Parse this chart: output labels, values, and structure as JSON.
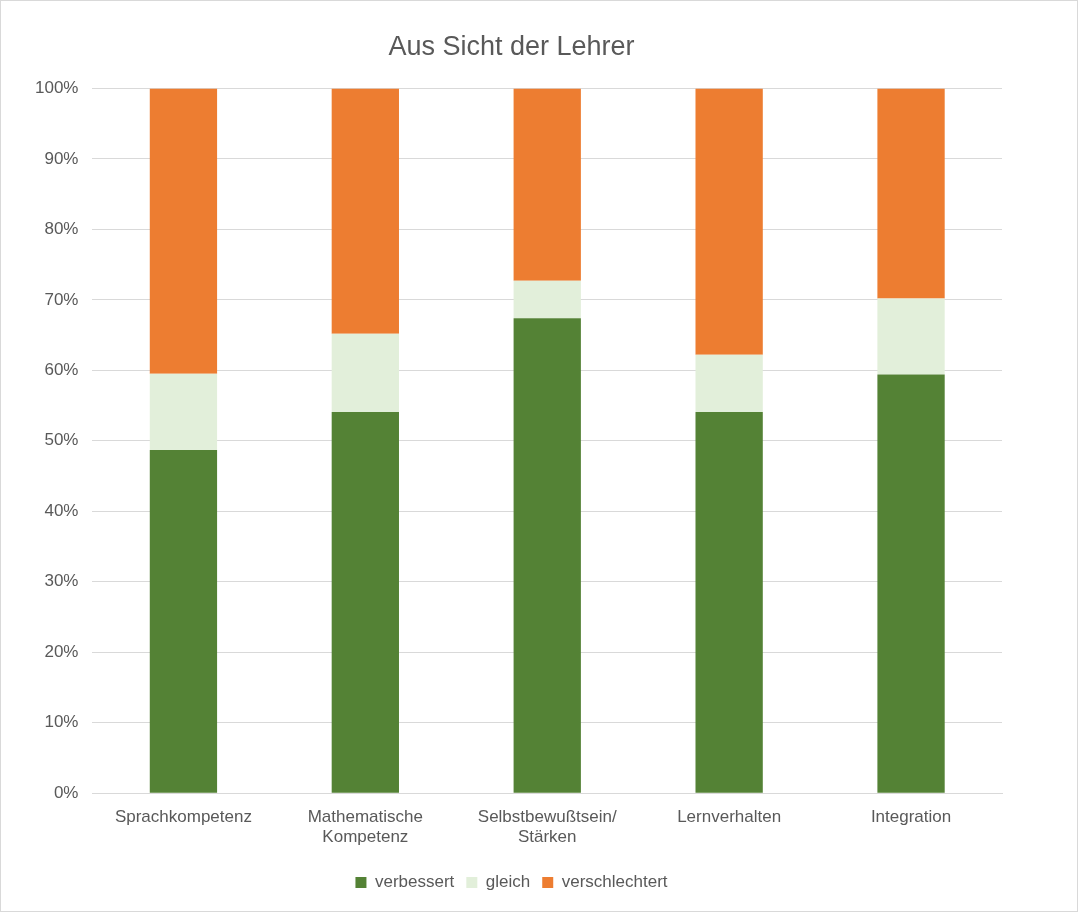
{
  "chart_data": {
    "type": "bar",
    "title": "Aus Sicht der Lehrer",
    "stacked": true,
    "categories": [
      "Sprachkompetenz",
      "Mathematische Kompetenz",
      "Selbstbewußtsein/ Stärken",
      "Lernverhalten",
      "Integration"
    ],
    "series": [
      {
        "name": "verbessert",
        "color": "#548235",
        "values": [
          48.7,
          54.1,
          67.4,
          54.1,
          59.4
        ]
      },
      {
        "name": "gleich",
        "color": "#e2efda",
        "values": [
          10.8,
          11.1,
          5.3,
          8.1,
          10.8
        ]
      },
      {
        "name": "verschlechtert",
        "color": "#ed7d31",
        "values": [
          40.5,
          34.8,
          27.3,
          37.8,
          29.8
        ]
      }
    ],
    "ylim": [
      0,
      100
    ],
    "yticks": [
      {
        "value": 0,
        "label": "0%"
      },
      {
        "value": 10,
        "label": "10%"
      },
      {
        "value": 20,
        "label": "20%"
      },
      {
        "value": 30,
        "label": "30%"
      },
      {
        "value": 40,
        "label": "40%"
      },
      {
        "value": 50,
        "label": "50%"
      },
      {
        "value": 60,
        "label": "60%"
      },
      {
        "value": 70,
        "label": "70%"
      },
      {
        "value": 80,
        "label": "80%"
      },
      {
        "value": 90,
        "label": "90%"
      },
      {
        "value": 100,
        "label": "100%"
      }
    ],
    "grid": "y",
    "legend": "bottom"
  }
}
